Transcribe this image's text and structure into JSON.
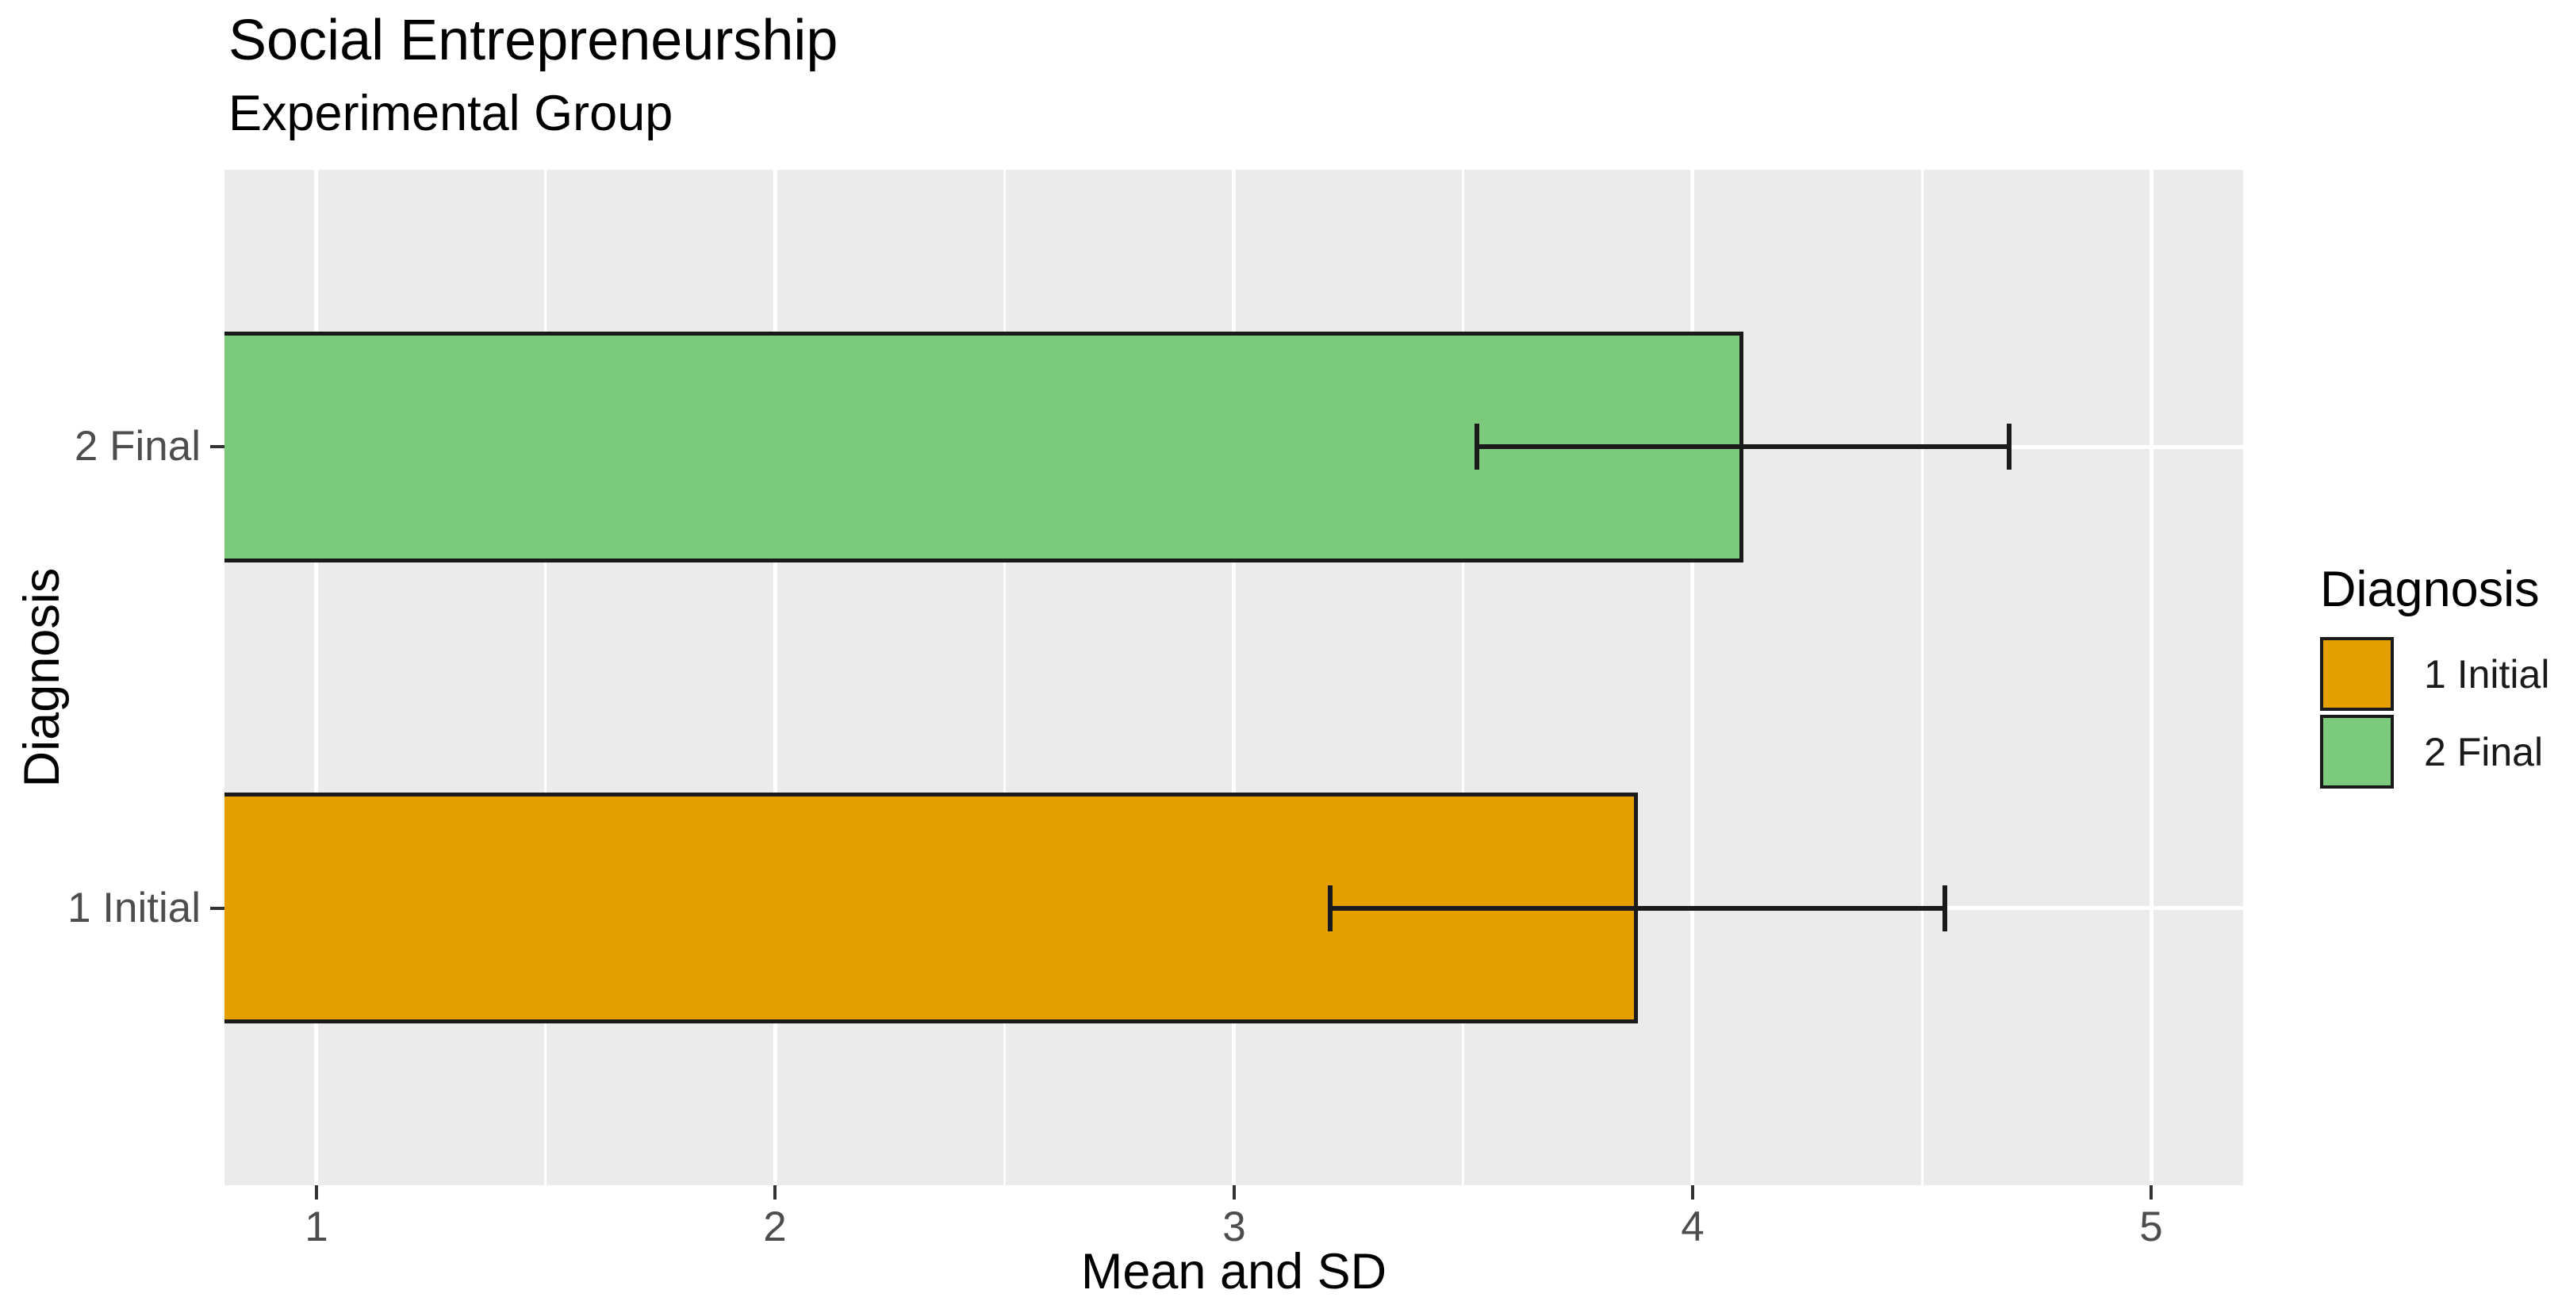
{
  "chart_data": {
    "type": "bar",
    "orientation": "horizontal",
    "title": "Social Entrepreneurship",
    "subtitle": "Experimental Group",
    "xlabel": "Mean and SD",
    "ylabel": "Diagnosis",
    "categories": [
      "1 Initial",
      "2 Final"
    ],
    "bars": [
      {
        "category": "1 Initial",
        "mean": 3.88,
        "sd": 0.67,
        "error_low": 3.21,
        "error_high": 4.55,
        "fill": "#E4A000"
      },
      {
        "category": "2 Final",
        "mean": 4.11,
        "sd": 0.58,
        "error_low": 3.53,
        "error_high": 4.69,
        "fill": "#7CCA7C"
      }
    ],
    "x_tick_values": [
      1,
      2,
      3,
      4,
      5
    ],
    "x_tick_labels": [
      "1",
      "2",
      "3",
      "4",
      "5"
    ],
    "xlim": [
      0.8,
      5.2
    ],
    "bar_width_fraction": 0.5,
    "category_expand": 0.6,
    "grid": {
      "major": true,
      "minor": true
    },
    "legend": {
      "title": "Diagnosis",
      "position": "right",
      "entries": [
        {
          "label": "1 Initial",
          "color": "#E4A000"
        },
        {
          "label": "2 Final",
          "color": "#7CCA7C"
        }
      ]
    },
    "colors": {
      "panel_background": "#EBEBEB",
      "gridline": "#FFFFFF",
      "bar_border": "#1A1A1A",
      "error_bar": "#1A1A1A",
      "axis_text": "#4D4D4D",
      "tick_mark": "#333333",
      "title_text": "#000000"
    }
  }
}
